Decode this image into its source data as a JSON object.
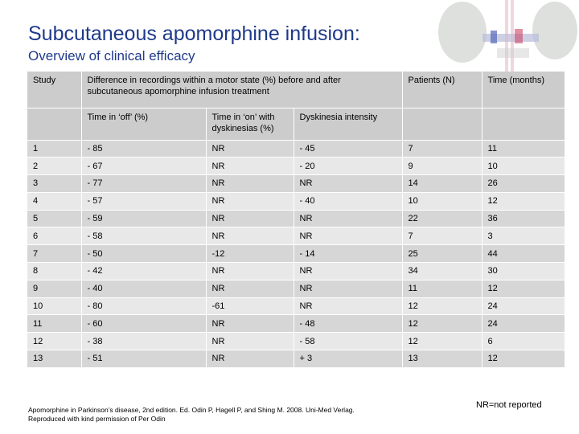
{
  "title": "Subcutaneous apomorphine infusion:",
  "subtitle": "Overview of clinical efficacy",
  "table": {
    "header": {
      "study": "Study",
      "difference": "Difference in recordings within a motor state (%) before and after subcutaneous apomorphine infusion treatment",
      "patients": "Patients (N)",
      "time": "Time (months)",
      "off": "Time in ‘off’ (%)",
      "on_dyskinesias": "Time in ‘on’ with dyskinesias (%)",
      "dyskinesia_intensity": "Dyskinesia intensity"
    },
    "rows": [
      {
        "study": "1",
        "off": "- 85",
        "on": "NR",
        "intensity": "- 45",
        "patients": "7",
        "time": "11"
      },
      {
        "study": "2",
        "off": "- 67",
        "on": "NR",
        "intensity": "- 20",
        "patients": "9",
        "time": "10"
      },
      {
        "study": "3",
        "off": "- 77",
        "on": "NR",
        "intensity": "NR",
        "patients": "14",
        "time": "26"
      },
      {
        "study": "4",
        "off": "- 57",
        "on": "NR",
        "intensity": "- 40",
        "patients": "10",
        "time": "12"
      },
      {
        "study": "5",
        "off": "- 59",
        "on": "NR",
        "intensity": "NR",
        "patients": "22",
        "time": "36"
      },
      {
        "study": "6",
        "off": "- 58",
        "on": "NR",
        "intensity": "NR",
        "patients": "7",
        "time": "3"
      },
      {
        "study": "7",
        "off": "- 50",
        "on": "-12",
        "intensity": "- 14",
        "patients": "25",
        "time": "44"
      },
      {
        "study": "8",
        "off": "- 42",
        "on": "NR",
        "intensity": "NR",
        "patients": "34",
        "time": "30"
      },
      {
        "study": "9",
        "off": "- 40",
        "on": "NR",
        "intensity": "NR",
        "patients": "11",
        "time": "12"
      },
      {
        "study": "10",
        "off": "- 80",
        "on": "-61",
        "intensity": "NR",
        "patients": "12",
        "time": "24"
      },
      {
        "study": "11",
        "off": "- 60",
        "on": "NR",
        "intensity": "- 48",
        "patients": "12",
        "time": "24"
      },
      {
        "study": "12",
        "off": "- 38",
        "on": "NR",
        "intensity": "- 58",
        "patients": "12",
        "time": "6"
      },
      {
        "study": "13",
        "off": "- 51",
        "on": "NR",
        "intensity": "+ 3",
        "patients": "13",
        "time": "12"
      }
    ]
  },
  "footnote": {
    "line1": "Apomorphine in Parkinson’s disease, 2nd edition. Ed. Odin P, Hagell P, and Shing M. 2008. Uni-Med Verlag.",
    "line2": "Reproduced with kind permission of Per Odin"
  },
  "nr_note": "NR=not reported",
  "decor_icon": "brain-scan-illustration"
}
